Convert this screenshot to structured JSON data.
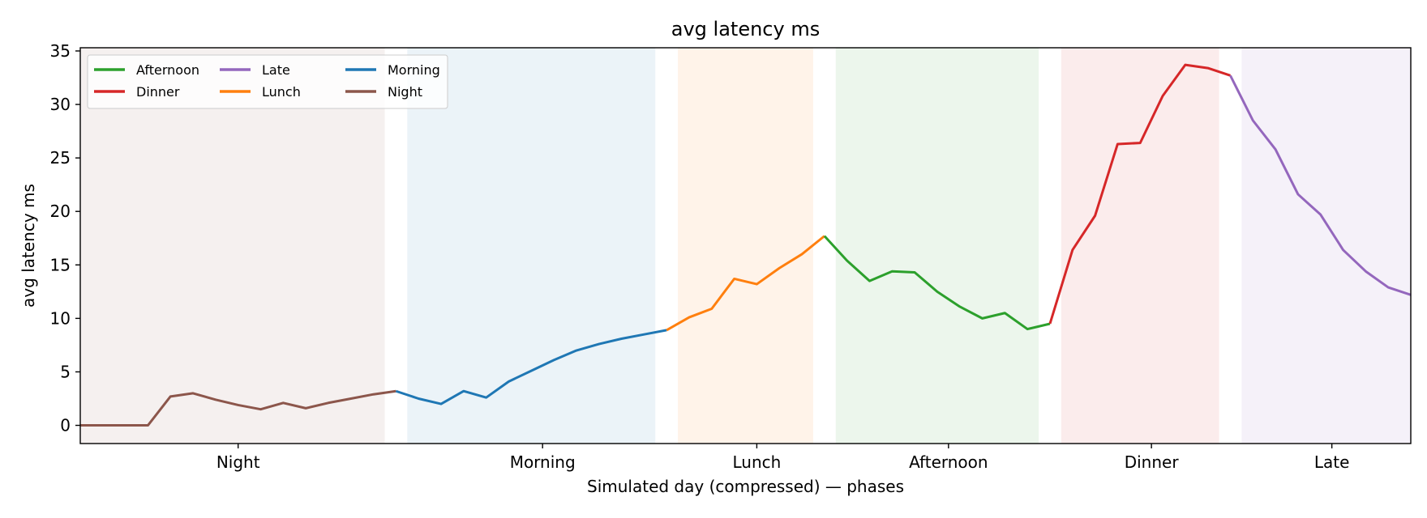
{
  "chart_data": {
    "type": "line",
    "title": "avg latency ms",
    "xlabel": "Simulated day (compressed) — phases",
    "ylabel": "avg latency ms",
    "ylim": [
      -1.7,
      35.3
    ],
    "yticks": [
      0,
      5,
      10,
      15,
      20,
      25,
      30,
      35
    ],
    "xlim": [
      0,
      59
    ],
    "grid": false,
    "legend": {
      "placement": "top-left",
      "columns": 3
    },
    "phases": [
      {
        "name": "Night",
        "start": 0,
        "end": 14,
        "color": "#8c564b"
      },
      {
        "name": "Morning",
        "start": 15,
        "end": 26,
        "color": "#1f77b4"
      },
      {
        "name": "Lunch",
        "start": 27,
        "end": 33,
        "color": "#ff7f0e"
      },
      {
        "name": "Afternoon",
        "start": 34,
        "end": 43,
        "color": "#2ca02c"
      },
      {
        "name": "Dinner",
        "start": 44,
        "end": 51,
        "color": "#d62728"
      },
      {
        "name": "Late",
        "start": 52,
        "end": 59,
        "color": "#9467bd"
      }
    ],
    "legend_order": [
      "Afternoon",
      "Dinner",
      "Late",
      "Lunch",
      "Morning",
      "Night"
    ],
    "series": [
      {
        "name": "Night",
        "color": "#8c564b",
        "x": [
          0,
          1,
          2,
          3,
          4,
          5,
          6,
          7,
          8,
          9,
          10,
          11,
          12,
          13,
          14
        ],
        "values": [
          0,
          0,
          0,
          0,
          2.7,
          3.0,
          2.4,
          1.9,
          1.5,
          2.1,
          1.6,
          2.1,
          2.5,
          2.9,
          3.2
        ]
      },
      {
        "name": "Morning",
        "color": "#1f77b4",
        "x": [
          15,
          16,
          17,
          18,
          19,
          20,
          21,
          22,
          23,
          24,
          25,
          26
        ],
        "values": [
          2.5,
          2.0,
          3.2,
          2.6,
          4.1,
          5.1,
          6.1,
          7.0,
          7.6,
          8.1,
          8.5,
          8.9
        ]
      },
      {
        "name": "Lunch",
        "color": "#ff7f0e",
        "x": [
          27,
          28,
          29,
          30,
          31,
          32,
          33
        ],
        "values": [
          10.1,
          10.9,
          13.7,
          13.2,
          14.7,
          16.0,
          17.7
        ]
      },
      {
        "name": "Afternoon",
        "color": "#2ca02c",
        "x": [
          34,
          35,
          36,
          37,
          38,
          39,
          40,
          41,
          42,
          43
        ],
        "values": [
          15.4,
          13.5,
          14.4,
          14.3,
          12.5,
          11.1,
          10.0,
          10.5,
          9.0,
          9.5
        ]
      },
      {
        "name": "Dinner",
        "color": "#d62728",
        "x": [
          44,
          45,
          46,
          47,
          48,
          49,
          50,
          51
        ],
        "values": [
          16.4,
          19.6,
          26.3,
          26.4,
          30.8,
          33.7,
          33.4,
          32.7
        ]
      },
      {
        "name": "Late",
        "color": "#9467bd",
        "x": [
          52,
          53,
          54,
          55,
          56,
          57,
          58,
          59
        ],
        "values": [
          28.5,
          25.8,
          21.6,
          19.7,
          16.4,
          14.4,
          12.9,
          12.2
        ]
      }
    ]
  }
}
